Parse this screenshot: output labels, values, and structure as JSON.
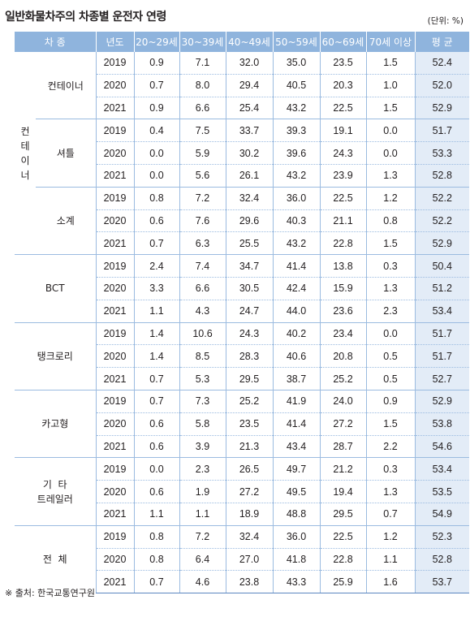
{
  "title": "일반화물차주의 차종별 운전자 연령",
  "unit": "(단위: %)",
  "headers": {
    "category": "차 종",
    "year": "년도",
    "age1": "20~29세",
    "age2": "30~39세",
    "age3": "40~49세",
    "age4": "50~59세",
    "age5": "60~69세",
    "age6": "70세 이상",
    "avg": "평 균"
  },
  "groups": {
    "container": "컨테이너",
    "container_chars": [
      "컨",
      "테",
      "이",
      "너"
    ],
    "container_sub1": "컨테이너",
    "container_sub2": "셔틀",
    "container_sub3": "소계",
    "bct": "BCT",
    "tank": "탱크로리",
    "cargo": "카고형",
    "etc_line1": "기  타",
    "etc_line2": "트레일러",
    "total": "전  체"
  },
  "rows": [
    [
      "2019",
      "0.9",
      "7.1",
      "32.0",
      "35.0",
      "23.5",
      "1.5",
      "52.4"
    ],
    [
      "2020",
      "0.7",
      "8.0",
      "29.4",
      "40.5",
      "20.3",
      "1.0",
      "52.0"
    ],
    [
      "2021",
      "0.9",
      "6.6",
      "25.4",
      "43.2",
      "22.5",
      "1.5",
      "52.9"
    ],
    [
      "2019",
      "0.4",
      "7.5",
      "33.7",
      "39.3",
      "19.1",
      "0.0",
      "51.7"
    ],
    [
      "2020",
      "0.0",
      "5.9",
      "30.2",
      "39.6",
      "24.3",
      "0.0",
      "53.3"
    ],
    [
      "2021",
      "0.0",
      "5.6",
      "26.1",
      "43.2",
      "23.9",
      "1.3",
      "52.8"
    ],
    [
      "2019",
      "0.8",
      "7.2",
      "32.4",
      "36.0",
      "22.5",
      "1.2",
      "52.2"
    ],
    [
      "2020",
      "0.6",
      "7.6",
      "29.6",
      "40.3",
      "21.1",
      "0.8",
      "52.2"
    ],
    [
      "2021",
      "0.7",
      "6.3",
      "25.5",
      "43.2",
      "22.8",
      "1.5",
      "52.9"
    ],
    [
      "2019",
      "2.4",
      "7.4",
      "34.7",
      "41.4",
      "13.8",
      "0.3",
      "50.4"
    ],
    [
      "2020",
      "3.3",
      "6.6",
      "30.5",
      "42.4",
      "15.9",
      "1.3",
      "51.2"
    ],
    [
      "2021",
      "1.1",
      "4.3",
      "24.7",
      "44.0",
      "23.6",
      "2.3",
      "53.4"
    ],
    [
      "2019",
      "1.4",
      "10.6",
      "24.3",
      "40.2",
      "23.4",
      "0.0",
      "51.7"
    ],
    [
      "2020",
      "1.4",
      "8.5",
      "28.3",
      "40.6",
      "20.8",
      "0.5",
      "51.7"
    ],
    [
      "2021",
      "0.7",
      "5.3",
      "29.5",
      "38.7",
      "25.2",
      "0.5",
      "52.7"
    ],
    [
      "2019",
      "0.7",
      "7.3",
      "25.2",
      "41.9",
      "24.0",
      "0.9",
      "52.9"
    ],
    [
      "2020",
      "0.6",
      "5.8",
      "23.5",
      "41.4",
      "27.2",
      "1.5",
      "53.8"
    ],
    [
      "2021",
      "0.6",
      "3.9",
      "21.3",
      "43.4",
      "28.7",
      "2.2",
      "54.6"
    ],
    [
      "2019",
      "0.0",
      "2.3",
      "26.5",
      "49.7",
      "21.2",
      "0.3",
      "53.4"
    ],
    [
      "2020",
      "0.6",
      "1.9",
      "27.2",
      "49.5",
      "19.4",
      "1.3",
      "53.5"
    ],
    [
      "2021",
      "1.1",
      "1.1",
      "18.9",
      "48.8",
      "29.5",
      "0.7",
      "54.9"
    ],
    [
      "2019",
      "0.8",
      "7.2",
      "32.4",
      "36.0",
      "22.5",
      "1.2",
      "52.3"
    ],
    [
      "2020",
      "0.8",
      "6.4",
      "27.0",
      "41.8",
      "22.8",
      "1.1",
      "52.8"
    ],
    [
      "2021",
      "0.7",
      "4.6",
      "23.8",
      "43.3",
      "25.9",
      "1.6",
      "53.7"
    ]
  ],
  "source": "※ 출처: 한국교통연구원"
}
